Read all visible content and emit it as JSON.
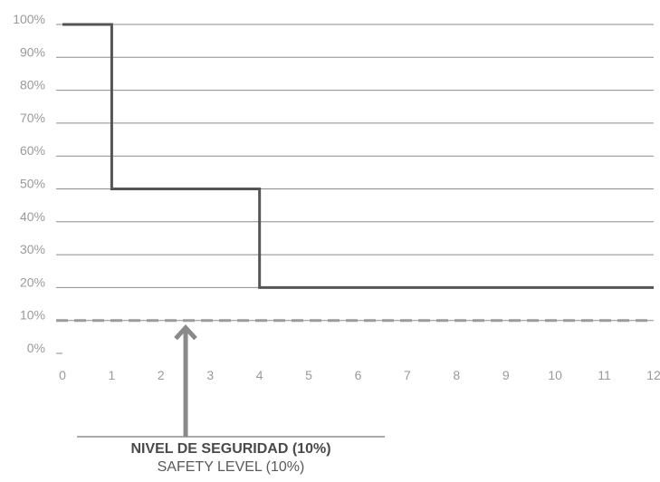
{
  "chart_data": {
    "type": "line",
    "step": true,
    "title": "",
    "xlabel": "",
    "ylabel": "",
    "xlim": [
      0,
      12
    ],
    "ylim": [
      0,
      100
    ],
    "x_ticks": [
      "0",
      "1",
      "2",
      "3",
      "4",
      "5",
      "6",
      "7",
      "8",
      "9",
      "10",
      "11",
      "12"
    ],
    "y_ticks": [
      "0%",
      "10%",
      "20%",
      "30%",
      "40%",
      "50%",
      "60%",
      "70%",
      "80%",
      "90%",
      "100%"
    ],
    "grid": true,
    "series": [
      {
        "x": [
          0,
          1,
          1,
          4,
          4,
          12
        ],
        "y": [
          100,
          100,
          50,
          50,
          20,
          20
        ],
        "color": "#555555"
      }
    ],
    "reference_line": {
      "y": 10,
      "style": "dashed",
      "color": "#9b9b9b"
    },
    "annotation": {
      "arrow_x": 2.5,
      "arrow_target_y": 10,
      "label_primary": "NIVEL DE SEGURIDAD (10%)",
      "label_secondary": "SAFETY LEVEL (10%)",
      "color": "#8a8a8a"
    }
  }
}
